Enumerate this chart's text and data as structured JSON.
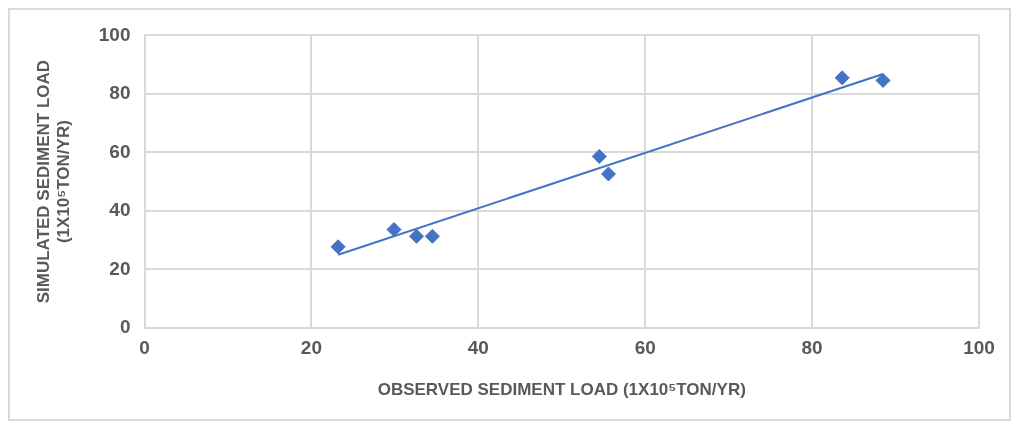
{
  "chart_data": {
    "type": "scatter",
    "xlabel": "OBSERVED SEDIMENT LOAD (1X10⁵TON/YR)",
    "ylabel": "SIMULATED SEDIMENT LOAD\n(1X10⁵TON/YR)",
    "xlim": [
      0,
      100
    ],
    "xticks": [
      0,
      20,
      40,
      60,
      80,
      100
    ],
    "ylim": [
      0,
      100
    ],
    "yticks": [
      0,
      20,
      40,
      60,
      80,
      100
    ],
    "grid": true,
    "legend": false,
    "series": [
      {
        "color": "#4472c4",
        "marker": "diamond",
        "x": [
          23.2,
          29.9,
          32.6,
          34.5,
          54.5,
          55.6,
          83.6,
          88.5
        ],
        "values": [
          27.7,
          33.6,
          31.3,
          31.3,
          58.6,
          52.6,
          85.5,
          84.6
        ]
      },
      {
        "type": "line",
        "color": "#4472c4",
        "marker": "none",
        "x": [
          23.2,
          88.5
        ],
        "values": [
          25.0,
          86.8
        ],
        "line_style": "solid"
      }
    ]
  }
}
